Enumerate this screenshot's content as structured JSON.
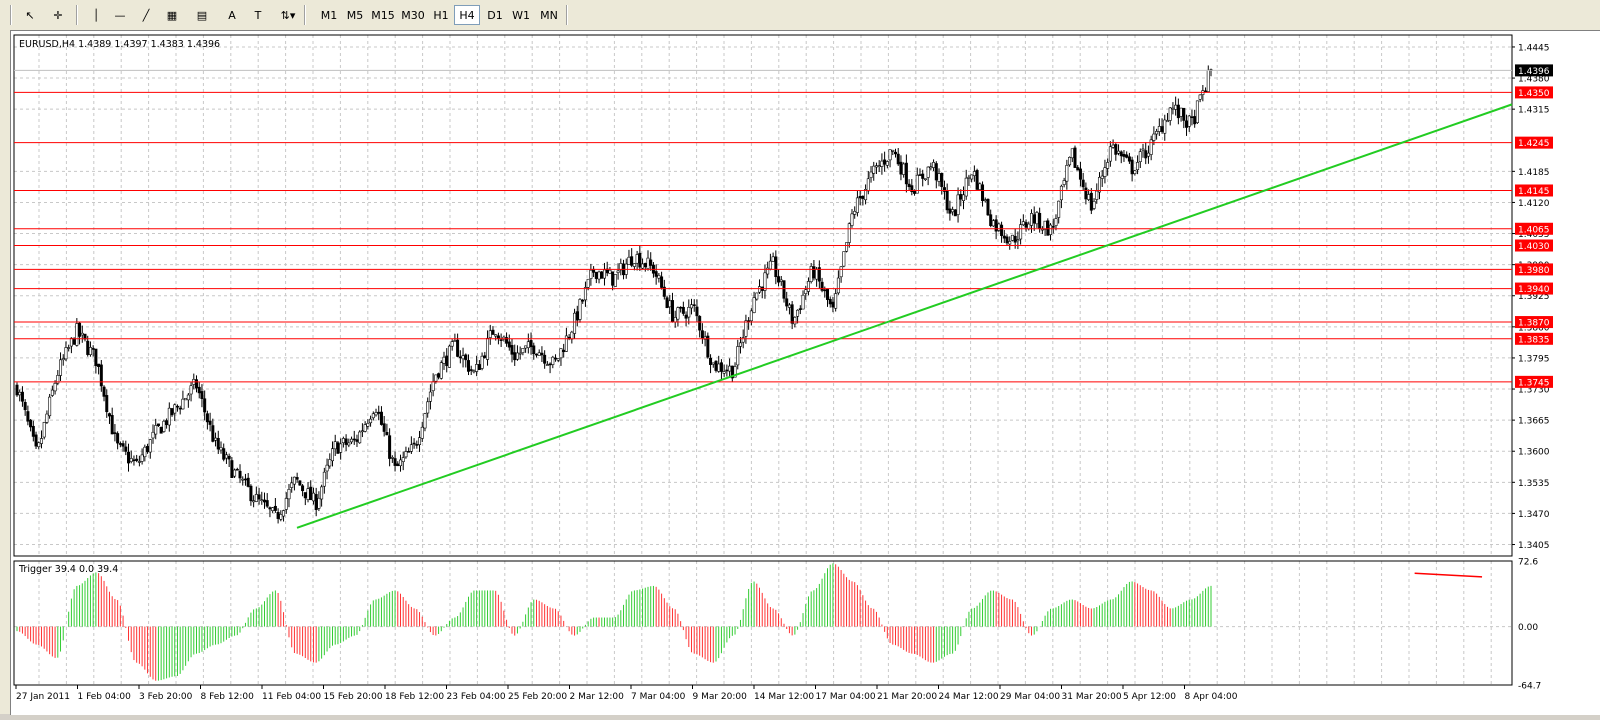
{
  "toolbar": {
    "tools": [
      "cursor-icon",
      "crosshair-icon",
      "vertical-line-icon",
      "horizontal-line-icon",
      "trendline-icon",
      "fibonacci-icon",
      "channel-icon",
      "text-icon",
      "text-label-icon",
      "arrows-dropdown-icon"
    ],
    "timeframes": [
      "M1",
      "M5",
      "M15",
      "M30",
      "H1",
      "H4",
      "D1",
      "W1",
      "MN"
    ],
    "active_timeframe": "H4"
  },
  "chart_data": {
    "type": "candlestick",
    "title": "EURUSD,H4  1.4389 1.4397 1.4383 1.4396",
    "ylim": [
      1.3381,
      1.447
    ],
    "price_ticks": [
      "1.4445",
      "1.4380",
      "1.4315",
      "1.4185",
      "1.4120",
      "1.4055",
      "1.3990",
      "1.3925",
      "1.3860",
      "1.3795",
      "1.3730",
      "1.3665",
      "1.3600",
      "1.3535",
      "1.3470",
      "1.3405"
    ],
    "current_price": "1.4396",
    "levels": [
      "1.4350",
      "1.4245",
      "1.4145",
      "1.4065",
      "1.4030",
      "1.3980",
      "1.3940",
      "1.3870",
      "1.3835",
      "1.3745"
    ],
    "trendline": {
      "color": "#22cc22",
      "from": {
        "bar": 0.0,
        "price": 1.344
      },
      "to": {
        "bar": 1.0,
        "price": 1.4325
      }
    },
    "x_labels": [
      "27 Jan 2011",
      "1 Feb 04:00",
      "3 Feb 20:00",
      "8 Feb 12:00",
      "11 Feb 04:00",
      "15 Feb 20:00",
      "18 Feb 12:00",
      "23 Feb 04:00",
      "25 Feb 20:00",
      "2 Mar 12:00",
      "7 Mar 04:00",
      "9 Mar 20:00",
      "14 Mar 12:00",
      "17 Mar 04:00",
      "21 Mar 20:00",
      "24 Mar 12:00",
      "29 Mar 04:00",
      "31 Mar 20:00",
      "5 Apr 12:00",
      "8 Apr 04:00"
    ],
    "close_path": [
      1.3735,
      1.359,
      1.376,
      1.385,
      1.379,
      1.361,
      1.357,
      1.364,
      1.369,
      1.374,
      1.361,
      1.355,
      1.35,
      1.346,
      1.354,
      1.349,
      1.361,
      1.362,
      1.37,
      1.356,
      1.361,
      1.376,
      1.382,
      1.376,
      1.386,
      1.38,
      1.382,
      1.378,
      1.387,
      1.398,
      1.396,
      1.401,
      1.398,
      1.388,
      1.39,
      1.378,
      1.377,
      1.392,
      1.399,
      1.387,
      1.398,
      1.389,
      1.41,
      1.418,
      1.423,
      1.415,
      1.42,
      1.409,
      1.419,
      1.408,
      1.404,
      1.409,
      1.406,
      1.422,
      1.411,
      1.424,
      1.419,
      1.424,
      1.432,
      1.428,
      1.4396
    ],
    "indicator": {
      "label": "Trigger 39.4 0.0 39.4",
      "ticks": [
        "72.6",
        "0.00",
        "-64.7"
      ],
      "range": [
        -64.7,
        72.6
      ],
      "control": [
        -5,
        -20,
        -35,
        45,
        60,
        30,
        -40,
        -60,
        -55,
        -30,
        -20,
        -10,
        20,
        40,
        -30,
        -40,
        -20,
        -10,
        30,
        40,
        20,
        -10,
        10,
        40,
        40,
        -10,
        30,
        20,
        -10,
        10,
        10,
        40,
        45,
        20,
        -30,
        -40,
        -10,
        50,
        20,
        -10,
        40,
        70,
        50,
        20,
        -20,
        -30,
        -40,
        -30,
        20,
        40,
        30,
        -10,
        20,
        30,
        20,
        30,
        50,
        40,
        20,
        30,
        45
      ],
      "divergence": {
        "color": "#ff0000",
        "from": {
          "bar": 0.935,
          "value": 59
        },
        "to": {
          "bar": 0.98,
          "value": 55
        }
      }
    }
  }
}
